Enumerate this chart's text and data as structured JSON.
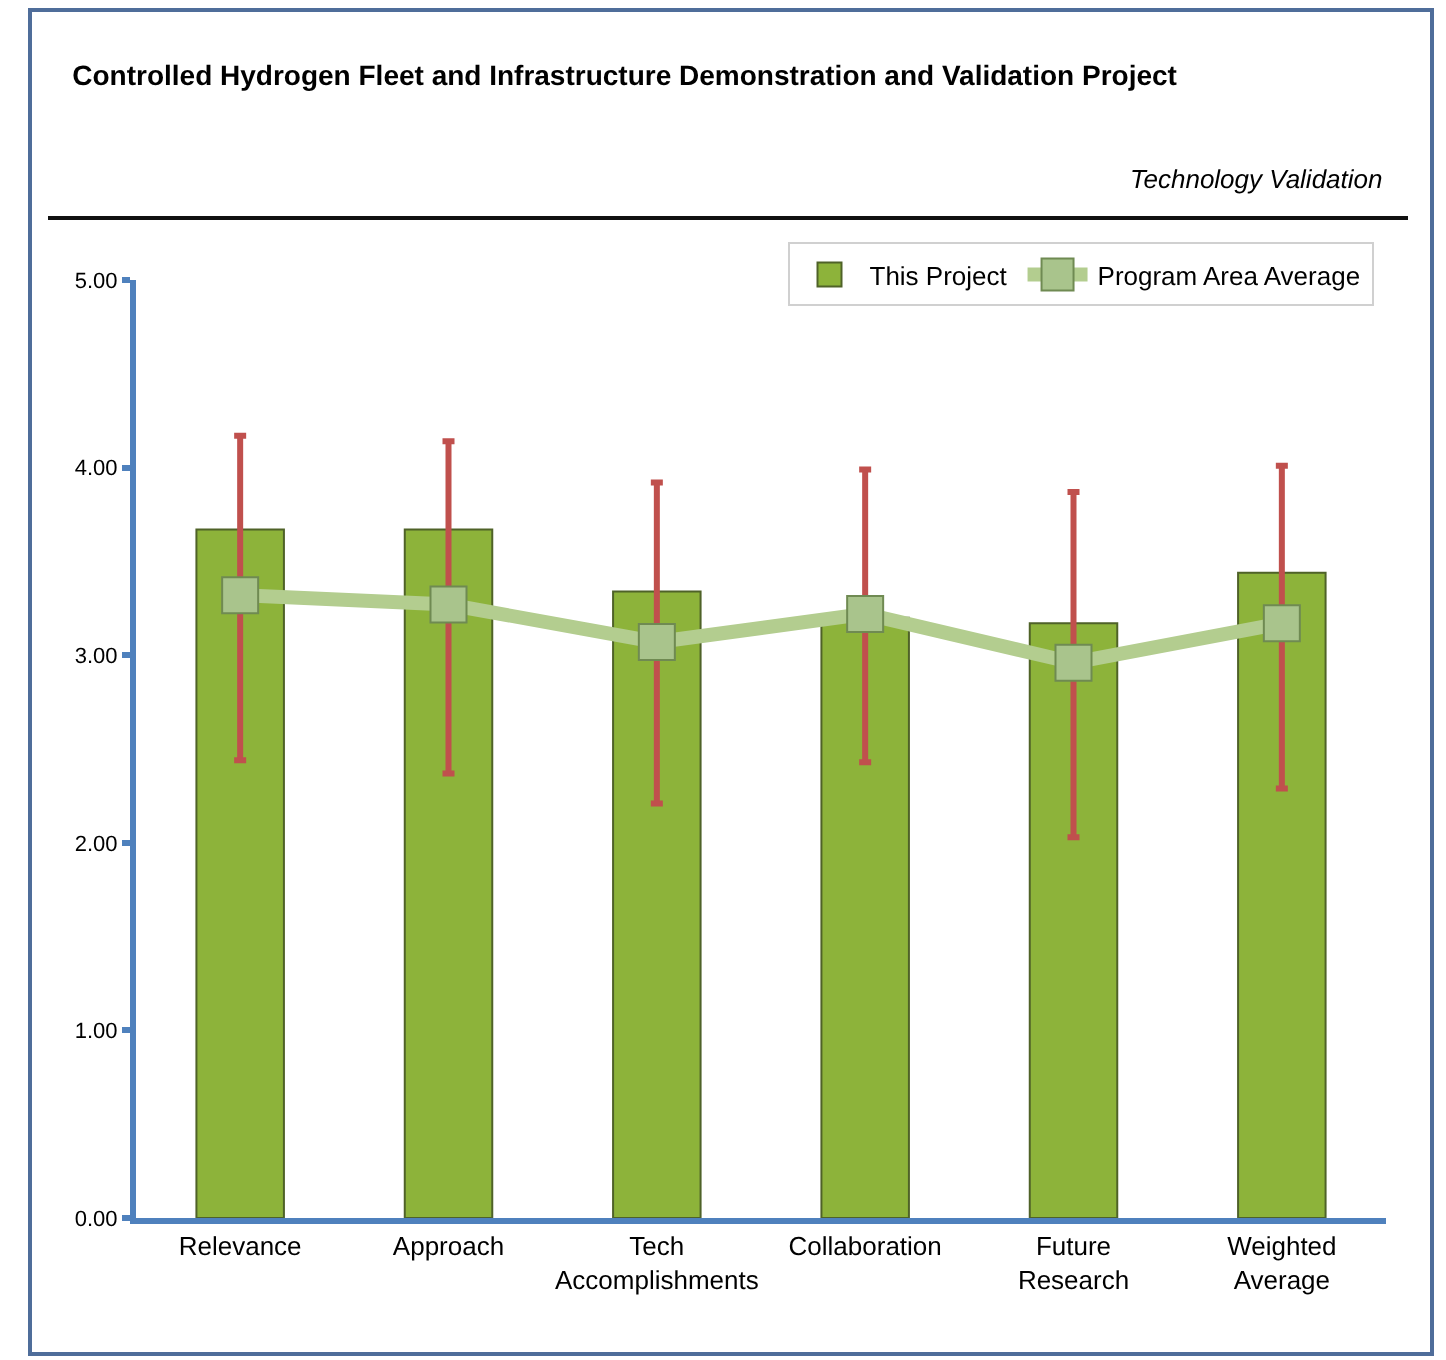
{
  "chart_data": {
    "type": "bar",
    "title": "Controlled Hydrogen Fleet and Infrastructure Demonstration and Validation Project",
    "subtitle": "Technology Validation",
    "categories": [
      "Relevance",
      "Approach",
      "Tech Accomplishments",
      "Collaboration",
      "Future Research",
      "Weighted Average"
    ],
    "series": [
      {
        "name": "This Project",
        "color": "#8db33a",
        "values": [
          3.67,
          3.67,
          3.34,
          3.2,
          3.17,
          3.44
        ],
        "errors": [
          [
            2.44,
            4.17
          ],
          [
            2.37,
            4.14
          ],
          [
            2.21,
            3.92
          ],
          [
            2.43,
            3.99
          ],
          [
            2.03,
            3.87
          ],
          [
            2.29,
            4.01
          ]
        ]
      },
      {
        "name": "Program Area Average",
        "type": "line",
        "color": "#b3cd8f",
        "marker": "square",
        "values": [
          3.32,
          3.27,
          3.07,
          3.22,
          2.96,
          3.17
        ]
      }
    ],
    "ylim": [
      0,
      5
    ],
    "yticks": [
      {
        "value": 0,
        "label": "0.00"
      },
      {
        "value": 1,
        "label": "1.00"
      },
      {
        "value": 2,
        "label": "2.00"
      },
      {
        "value": 3,
        "label": "3.00"
      },
      {
        "value": 4,
        "label": "4.00"
      },
      {
        "value": 5,
        "label": "5.00"
      }
    ],
    "grid": false,
    "legend": "top right"
  }
}
